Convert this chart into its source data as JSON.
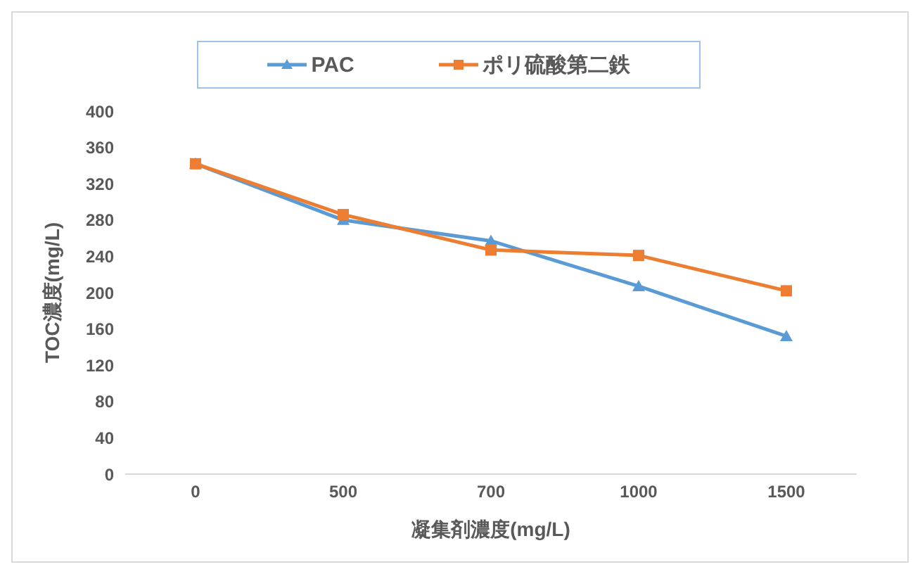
{
  "chart_data": {
    "type": "line",
    "xlabel": "凝集剤濃度(mg/L)",
    "ylabel": "TOC濃度(mg/L)",
    "categories": [
      "0",
      "500",
      "700",
      "1000",
      "1500"
    ],
    "series": [
      {
        "name": "PAC",
        "color": "#5b9bd5",
        "marker": "triangle",
        "values": [
          342,
          280,
          257,
          207,
          152
        ]
      },
      {
        "name": "ポリ硫酸第二鉄",
        "color": "#ed7d31",
        "marker": "square",
        "values": [
          342,
          286,
          247,
          241,
          202
        ]
      }
    ],
    "ylim": [
      0,
      400
    ],
    "yticks": [
      0,
      40,
      80,
      120,
      160,
      200,
      240,
      280,
      320,
      360,
      400
    ],
    "legend": "top"
  }
}
